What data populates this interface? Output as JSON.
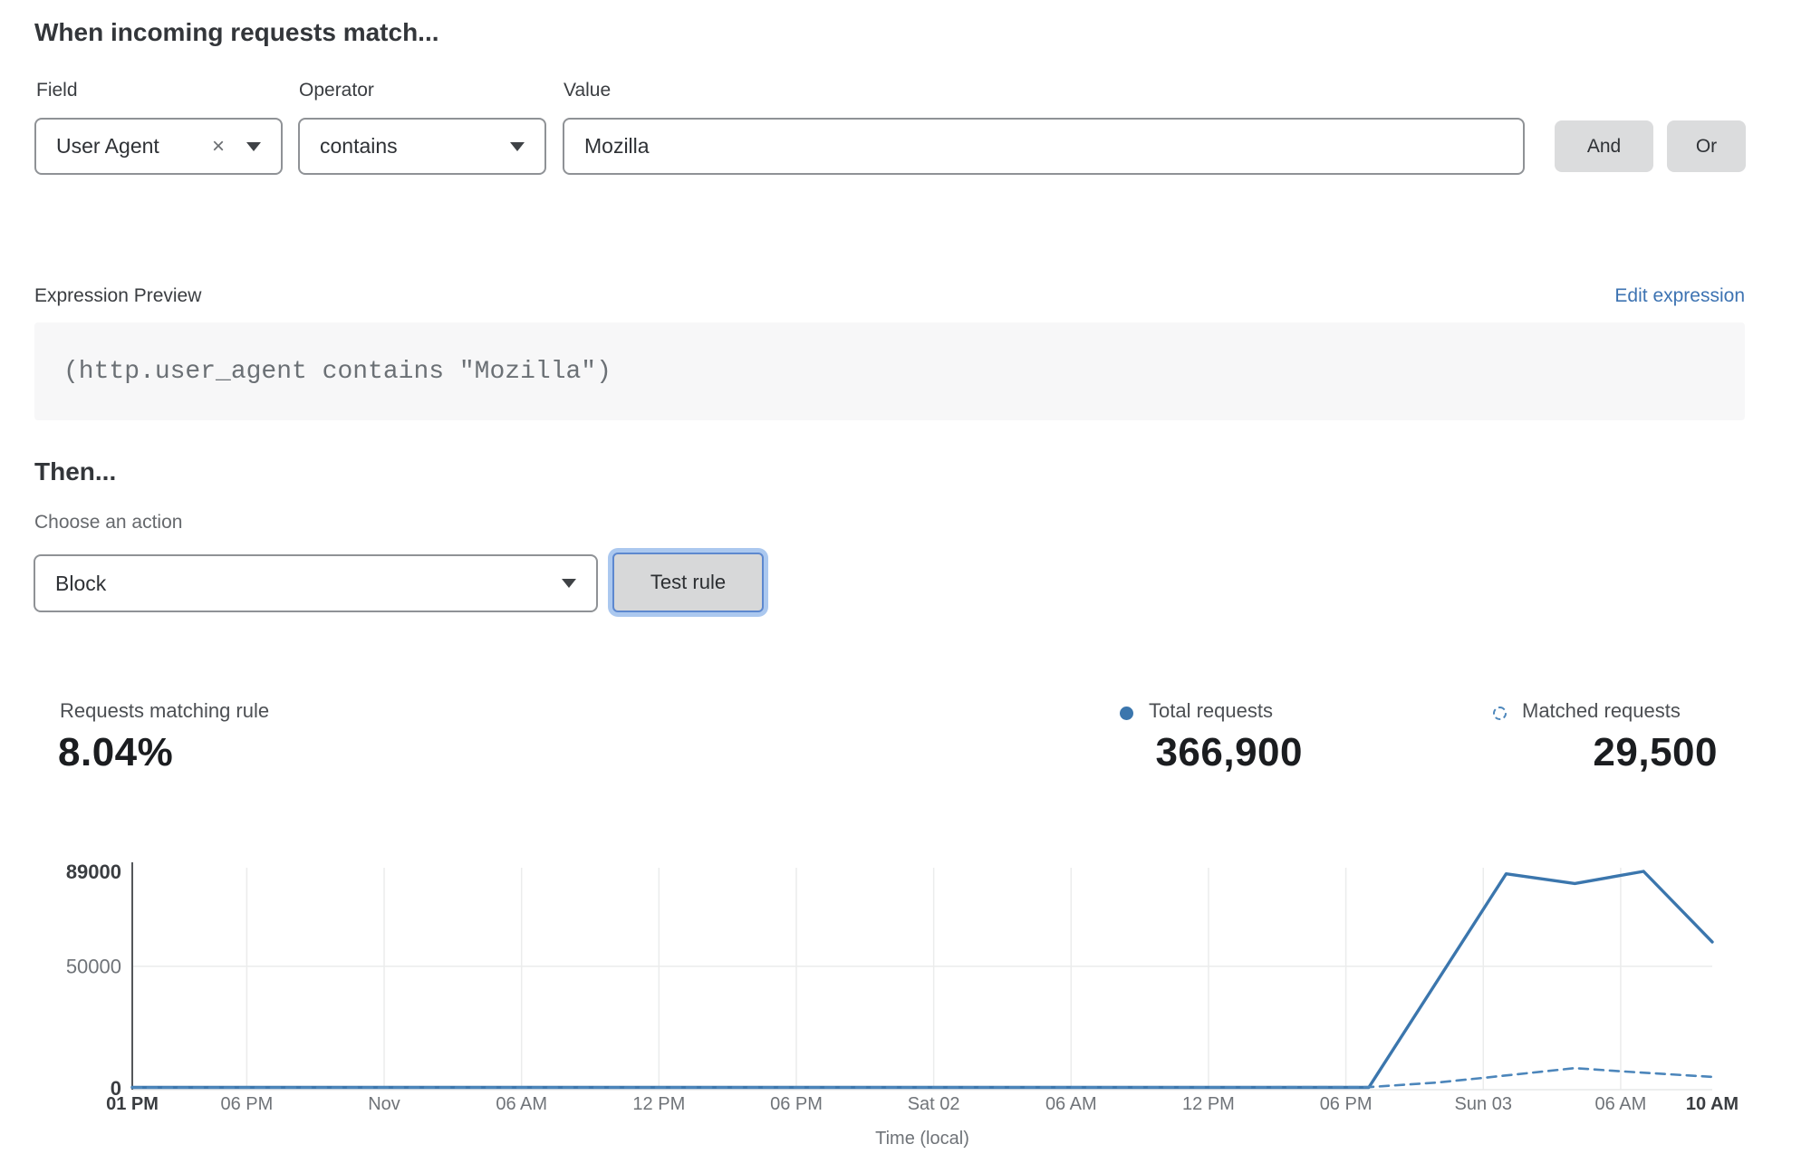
{
  "header": {
    "title": "When incoming requests match..."
  },
  "form": {
    "field": {
      "label": "Field",
      "value": "User Agent",
      "clear_icon": "×"
    },
    "operator": {
      "label": "Operator",
      "value": "contains"
    },
    "value": {
      "label": "Value",
      "value": "Mozilla"
    },
    "and_label": "And",
    "or_label": "Or"
  },
  "expression": {
    "label": "Expression Preview",
    "edit_link": "Edit expression",
    "code": "(http.user_agent contains \"Mozilla\")"
  },
  "then": {
    "title": "Then...",
    "choose_label": "Choose an action",
    "action_value": "Block",
    "test_button": "Test rule"
  },
  "stats": {
    "matching": {
      "label": "Requests matching rule",
      "value": "8.04%"
    },
    "total": {
      "label": "Total requests",
      "value": "366,900"
    },
    "matched": {
      "label": "Matched requests",
      "value": "29,500"
    }
  },
  "chart_data": {
    "type": "line",
    "title": "",
    "xlabel": "Time (local)",
    "ylabel": "",
    "grid": true,
    "legend_position": "above-right",
    "ylim": [
      0,
      89000
    ],
    "y_ticks": [
      {
        "value": 0,
        "label": "0",
        "bold": true
      },
      {
        "value": 50000,
        "label": "50000",
        "bold": false
      },
      {
        "value": 89000,
        "label": "89000",
        "bold": true
      }
    ],
    "x_hours_range": [
      0,
      69
    ],
    "x_ticks": [
      {
        "hour": 0,
        "label": "01 PM",
        "bold": true
      },
      {
        "hour": 5,
        "label": "06 PM",
        "bold": false
      },
      {
        "hour": 11,
        "label": "Nov",
        "bold": false
      },
      {
        "hour": 17,
        "label": "06 AM",
        "bold": false
      },
      {
        "hour": 23,
        "label": "12 PM",
        "bold": false
      },
      {
        "hour": 29,
        "label": "06 PM",
        "bold": false
      },
      {
        "hour": 35,
        "label": "Sat 02",
        "bold": false
      },
      {
        "hour": 41,
        "label": "06 AM",
        "bold": false
      },
      {
        "hour": 47,
        "label": "12 PM",
        "bold": false
      },
      {
        "hour": 53,
        "label": "06 PM",
        "bold": false
      },
      {
        "hour": 59,
        "label": "Sun 03",
        "bold": false
      },
      {
        "hour": 65,
        "label": "06 AM",
        "bold": false
      },
      {
        "hour": 69,
        "label": "10 AM",
        "bold": true
      }
    ],
    "series": [
      {
        "name": "Total requests",
        "style": "solid",
        "color": "#3b76ad",
        "points": [
          [
            0,
            200
          ],
          [
            54,
            200
          ],
          [
            60,
            88000
          ],
          [
            63,
            84000
          ],
          [
            66,
            89000
          ],
          [
            69,
            60000
          ]
        ]
      },
      {
        "name": "Matched requests",
        "style": "dashed",
        "color": "#4c86bb",
        "points": [
          [
            0,
            100
          ],
          [
            54,
            300
          ],
          [
            57,
            2200
          ],
          [
            59,
            4100
          ],
          [
            63,
            8100
          ],
          [
            65,
            6800
          ],
          [
            69,
            4500
          ]
        ]
      }
    ]
  }
}
